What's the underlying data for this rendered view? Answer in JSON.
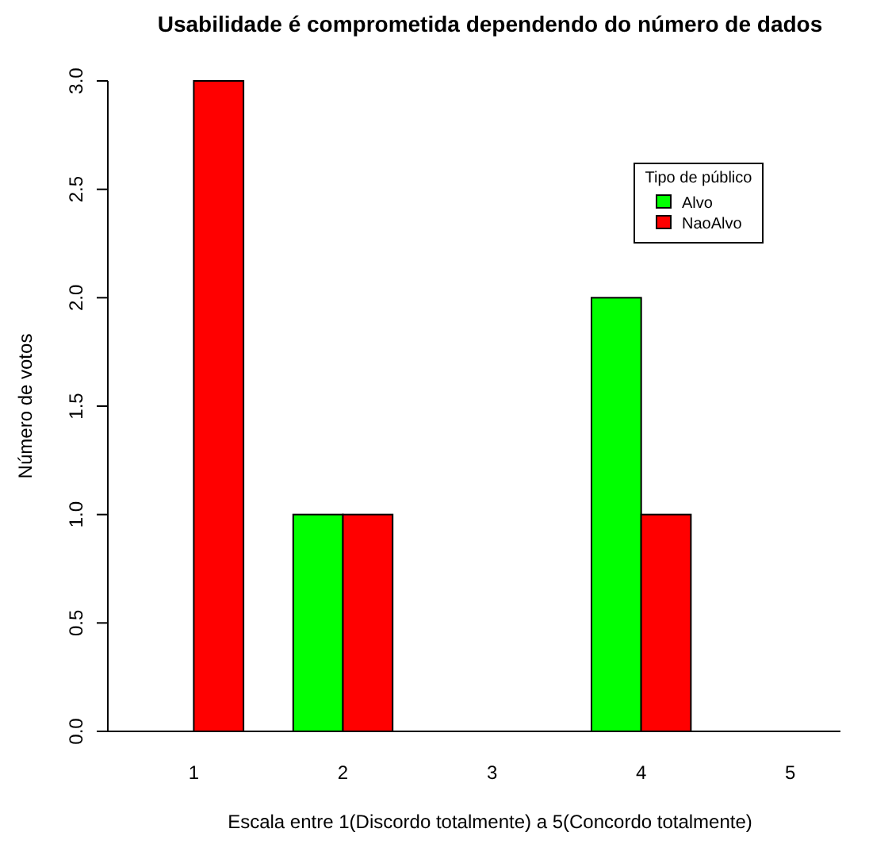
{
  "chart_data": {
    "type": "bar",
    "title": "Usabilidade é comprometida dependendo do número de dados",
    "xlabel": "Escala entre 1(Discordo totalmente) a 5(Concordo totalmente)",
    "ylabel": "Número de votos",
    "legend_title": "Tipo de público",
    "categories": [
      "1",
      "2",
      "3",
      "4",
      "5"
    ],
    "series": [
      {
        "name": "Alvo",
        "color": "#00ff00",
        "values": [
          0,
          1,
          0,
          2,
          0
        ]
      },
      {
        "name": "NaoAlvo",
        "color": "#ff0000",
        "values": [
          3,
          1,
          0,
          1,
          0
        ]
      }
    ],
    "ylim": [
      0,
      3
    ],
    "yticks": [
      {
        "value": 0,
        "label": "0.0"
      },
      {
        "value": 0.5,
        "label": "0.5"
      },
      {
        "value": 1,
        "label": "1.0"
      },
      {
        "value": 1.5,
        "label": "1.5"
      },
      {
        "value": 2,
        "label": "2.0"
      },
      {
        "value": 2.5,
        "label": "2.5"
      },
      {
        "value": 3,
        "label": "3.0"
      }
    ],
    "legend": "top right",
    "grid": false
  }
}
